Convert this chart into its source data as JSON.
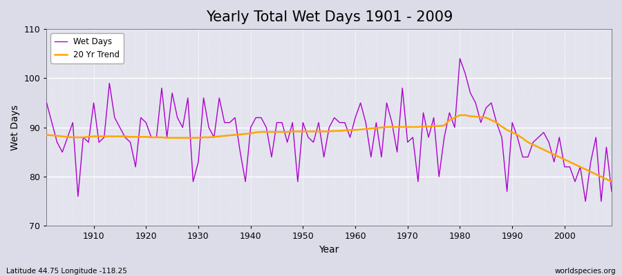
{
  "title": "Yearly Total Wet Days 1901 - 2009",
  "xlabel": "Year",
  "ylabel": "Wet Days",
  "lat_lon_label": "Latitude 44.75 Longitude -118.25",
  "source_label": "worldspecies.org",
  "ylim": [
    70,
    110
  ],
  "yticks": [
    70,
    80,
    90,
    100,
    110
  ],
  "line_color": "#AA00CC",
  "trend_color": "#FFA500",
  "bg_color": "#DCDCE8",
  "plot_bg_color": "#E8E8F0",
  "years": [
    1901,
    1902,
    1903,
    1904,
    1905,
    1906,
    1907,
    1908,
    1909,
    1910,
    1911,
    1912,
    1913,
    1914,
    1915,
    1916,
    1917,
    1918,
    1919,
    1920,
    1921,
    1922,
    1923,
    1924,
    1925,
    1926,
    1927,
    1928,
    1929,
    1930,
    1931,
    1932,
    1933,
    1934,
    1935,
    1936,
    1937,
    1938,
    1939,
    1940,
    1941,
    1942,
    1943,
    1944,
    1945,
    1946,
    1947,
    1948,
    1949,
    1950,
    1951,
    1952,
    1953,
    1954,
    1955,
    1956,
    1957,
    1958,
    1959,
    1960,
    1961,
    1962,
    1963,
    1964,
    1965,
    1966,
    1967,
    1968,
    1969,
    1970,
    1971,
    1972,
    1973,
    1974,
    1975,
    1976,
    1977,
    1978,
    1979,
    1980,
    1981,
    1982,
    1983,
    1984,
    1985,
    1986,
    1987,
    1988,
    1989,
    1990,
    1991,
    1992,
    1993,
    1994,
    1995,
    1996,
    1997,
    1998,
    1999,
    2000,
    2001,
    2002,
    2003,
    2004,
    2005,
    2006,
    2007,
    2008,
    2009
  ],
  "wet_days": [
    95,
    91,
    87,
    85,
    88,
    91,
    76,
    88,
    87,
    95,
    87,
    88,
    99,
    92,
    90,
    88,
    87,
    82,
    92,
    91,
    88,
    88,
    98,
    88,
    97,
    92,
    90,
    96,
    79,
    83,
    96,
    90,
    88,
    96,
    91,
    91,
    92,
    85,
    79,
    90,
    92,
    92,
    90,
    84,
    91,
    91,
    87,
    91,
    79,
    91,
    88,
    87,
    91,
    84,
    90,
    92,
    91,
    91,
    88,
    92,
    95,
    91,
    84,
    91,
    84,
    95,
    91,
    85,
    98,
    87,
    88,
    79,
    93,
    88,
    92,
    80,
    88,
    93,
    90,
    104,
    101,
    97,
    95,
    91,
    94,
    95,
    91,
    88,
    77,
    91,
    88,
    84,
    84,
    87,
    88,
    89,
    87,
    83,
    88,
    82,
    82,
    79,
    82,
    75,
    83,
    88,
    75,
    86,
    77
  ],
  "trend_values": [
    88.5,
    88.4,
    88.3,
    88.2,
    88.1,
    88.0,
    88.0,
    88.0,
    88.1,
    88.2,
    88.2,
    88.2,
    88.2,
    88.2,
    88.2,
    88.2,
    88.1,
    88.1,
    88.1,
    88.1,
    88.0,
    88.0,
    88.0,
    87.9,
    87.9,
    87.9,
    87.9,
    87.9,
    87.9,
    87.9,
    88.0,
    88.0,
    88.1,
    88.2,
    88.3,
    88.4,
    88.5,
    88.6,
    88.7,
    88.8,
    89.0,
    89.1,
    89.1,
    89.1,
    89.1,
    89.1,
    89.1,
    89.2,
    89.2,
    89.2,
    89.2,
    89.2,
    89.2,
    89.2,
    89.2,
    89.3,
    89.3,
    89.4,
    89.5,
    89.5,
    89.6,
    89.7,
    89.8,
    89.9,
    90.0,
    90.1,
    90.1,
    90.1,
    90.1,
    90.1,
    90.1,
    90.1,
    90.2,
    90.2,
    90.3,
    90.3,
    90.4,
    91.5,
    92.0,
    92.5,
    92.5,
    92.3,
    92.2,
    92.1,
    92.0,
    91.5,
    91.0,
    90.2,
    89.5,
    89.0,
    88.5,
    87.8,
    87.0,
    86.5,
    86.0,
    85.5,
    85.0,
    84.5,
    84.0,
    83.5,
    83.0,
    82.5,
    82.0,
    81.5,
    81.0,
    80.5,
    80.0,
    79.5,
    79.0
  ],
  "xticks": [
    1910,
    1920,
    1930,
    1940,
    1950,
    1960,
    1970,
    1980,
    1990,
    2000
  ],
  "legend_labels": [
    "Wet Days",
    "20 Yr Trend"
  ],
  "title_fontsize": 15,
  "label_fontsize": 10,
  "tick_fontsize": 9
}
